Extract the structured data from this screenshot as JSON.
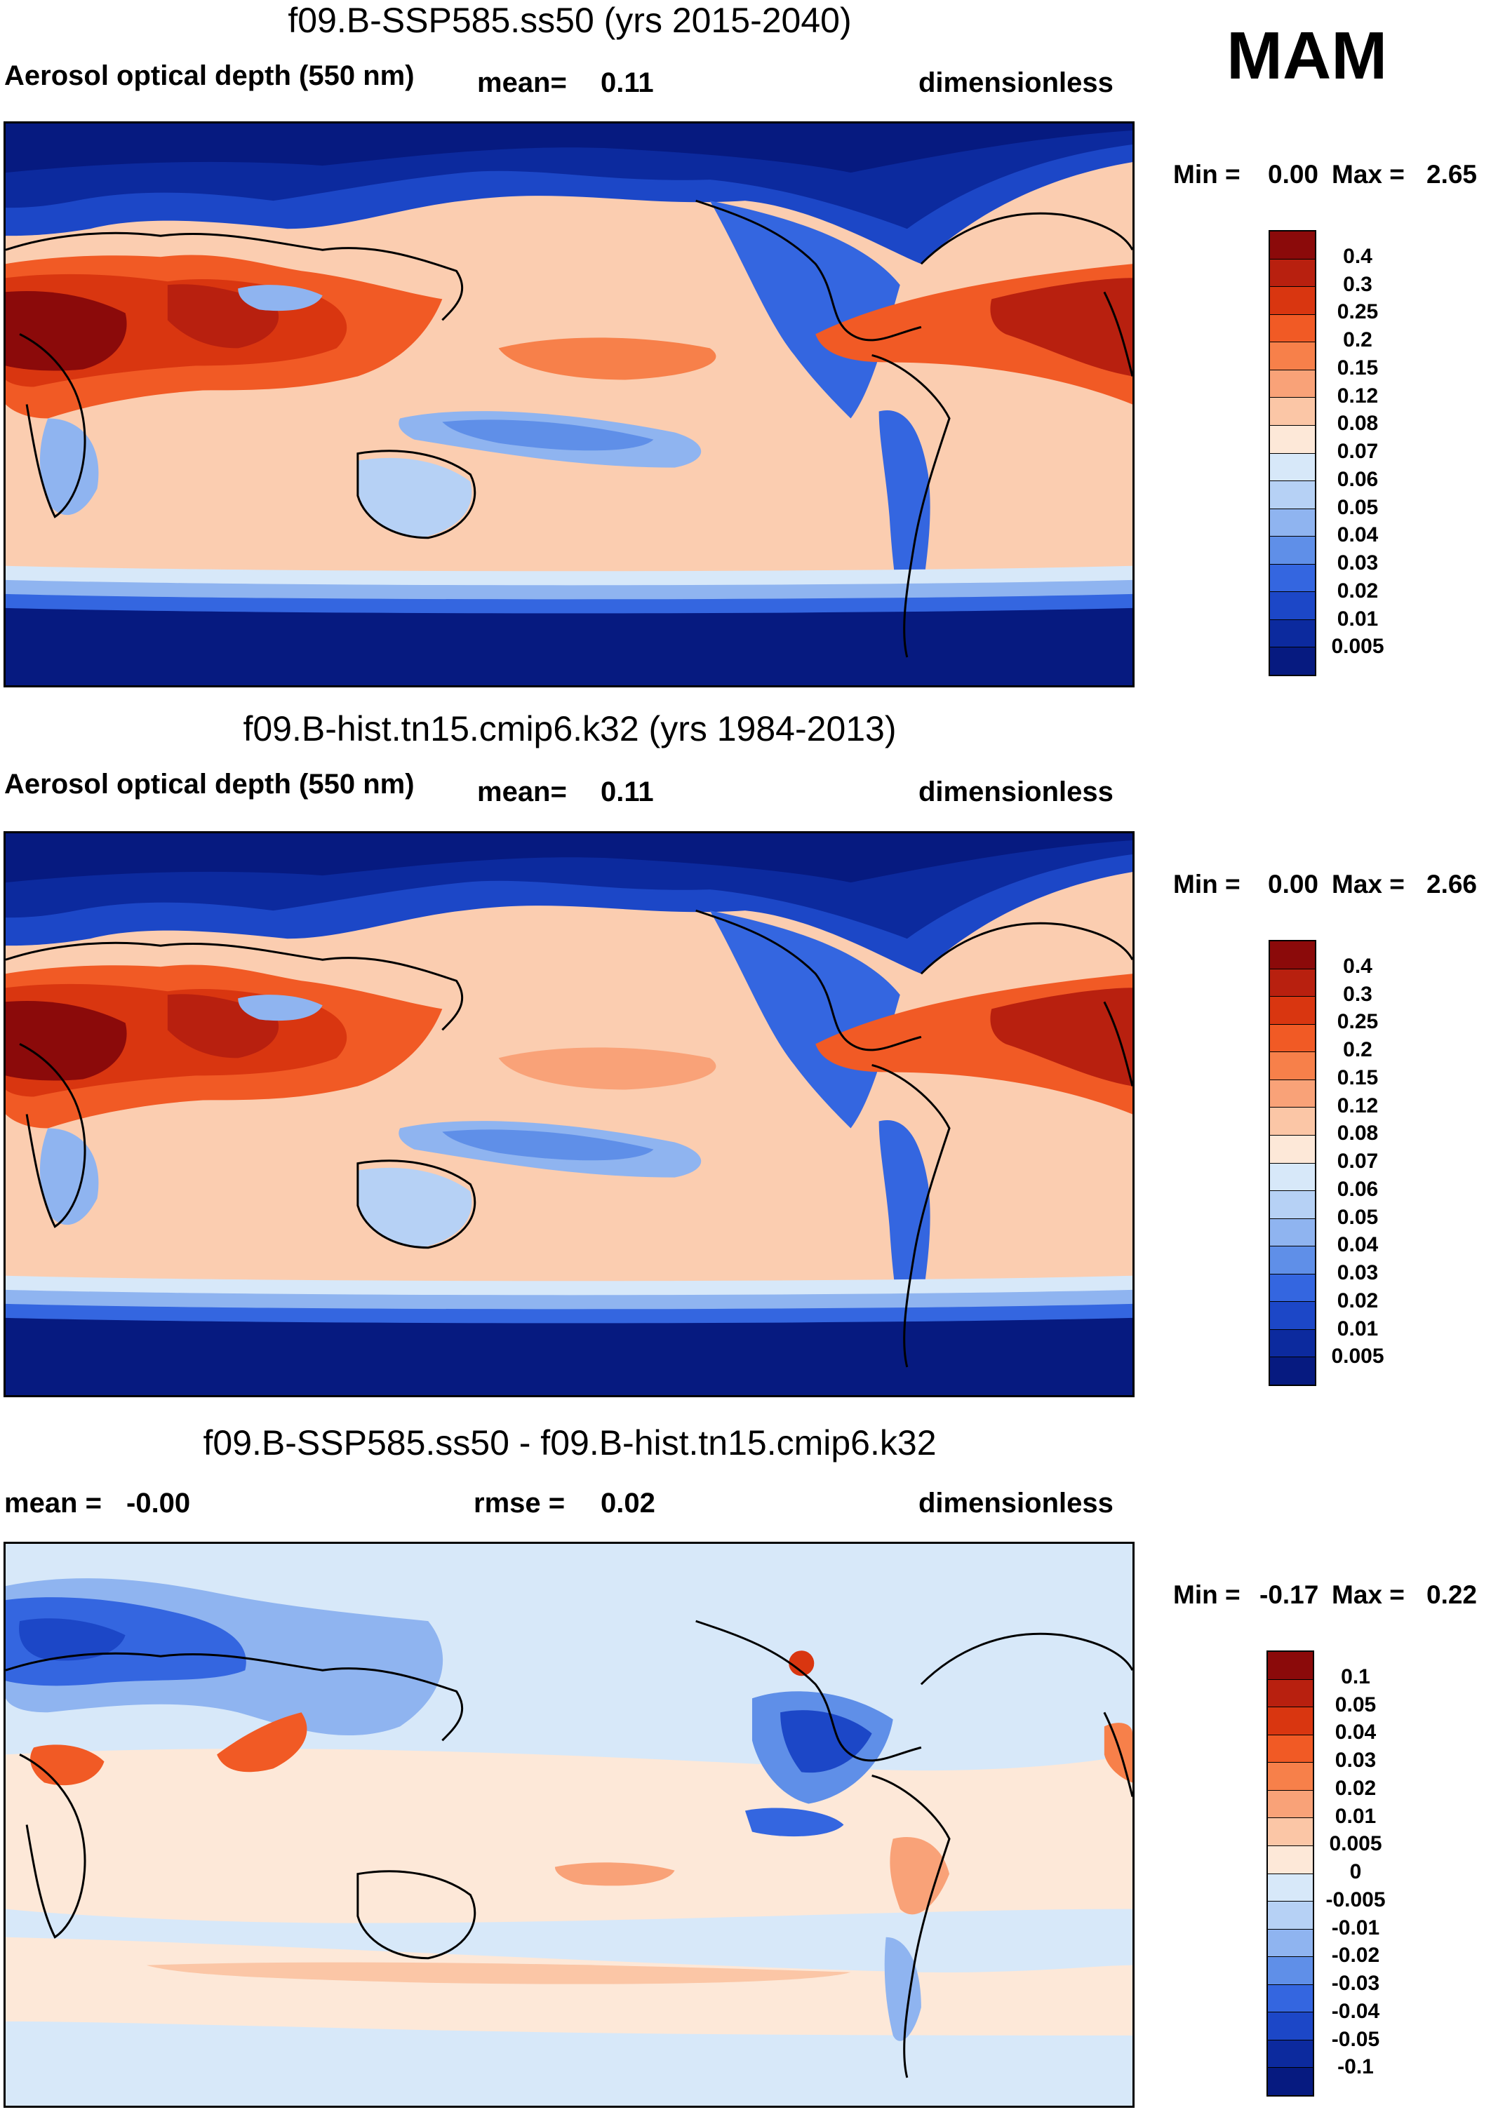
{
  "season": "MAM",
  "panels": [
    {
      "id": "ssp585",
      "title": "f09.B-SSP585.ss50 (yrs 2015-2040)",
      "left_label": "Aerosol optical depth (550 nm)",
      "mid_label": "mean=",
      "mid_value": "0.11",
      "right_label": "dimensionless",
      "min_label": "Min =",
      "min_value": "0.00",
      "max_label": "Max =",
      "max_value": "2.65",
      "legend_levels": [
        "0.4",
        "0.3",
        "0.25",
        "0.2",
        "0.15",
        "0.12",
        "0.08",
        "0.07",
        "0.06",
        "0.05",
        "0.04",
        "0.03",
        "0.02",
        "0.01",
        "0.005"
      ],
      "legend_colors": [
        "#8b0a0a",
        "#b8200f",
        "#d93610",
        "#f15a25",
        "#f7804a",
        "#f9a278",
        "#fbc6a6",
        "#fde8d8",
        "#d7e8f9",
        "#b6d1f5",
        "#8fb4f0",
        "#5f8fe8",
        "#3466e0",
        "#1c47c7",
        "#0c2a9e",
        "#061a80"
      ]
    },
    {
      "id": "hist",
      "title": "f09.B-hist.tn15.cmip6.k32 (yrs 1984-2013)",
      "left_label": "Aerosol optical depth (550 nm)",
      "mid_label": "mean=",
      "mid_value": "0.11",
      "right_label": "dimensionless",
      "min_label": "Min =",
      "min_value": "0.00",
      "max_label": "Max =",
      "max_value": "2.66",
      "legend_levels": [
        "0.4",
        "0.3",
        "0.25",
        "0.2",
        "0.15",
        "0.12",
        "0.08",
        "0.07",
        "0.06",
        "0.05",
        "0.04",
        "0.03",
        "0.02",
        "0.01",
        "0.005"
      ],
      "legend_colors": [
        "#8b0a0a",
        "#b8200f",
        "#d93610",
        "#f15a25",
        "#f7804a",
        "#f9a278",
        "#fbc6a6",
        "#fde8d8",
        "#d7e8f9",
        "#b6d1f5",
        "#8fb4f0",
        "#5f8fe8",
        "#3466e0",
        "#1c47c7",
        "#0c2a9e",
        "#061a80"
      ]
    },
    {
      "id": "diff",
      "title": "f09.B-SSP585.ss50 - f09.B-hist.tn15.cmip6.k32",
      "left_label": "mean =",
      "left_value": "-0.00",
      "mid_label": "rmse =",
      "mid_value": "0.02",
      "right_label": "dimensionless",
      "min_label": "Min =",
      "min_value": "-0.17",
      "max_label": "Max =",
      "max_value": "0.22",
      "legend_levels": [
        "0.1",
        "0.05",
        "0.04",
        "0.03",
        "0.02",
        "0.01",
        "0.005",
        "0",
        "-0.005",
        "-0.01",
        "-0.02",
        "-0.03",
        "-0.04",
        "-0.05",
        "-0.1"
      ],
      "legend_colors": [
        "#8b0a0a",
        "#b8200f",
        "#d93610",
        "#f15a25",
        "#f7804a",
        "#f9a278",
        "#fbc6a6",
        "#fde8d8",
        "#d7e8f9",
        "#b6d1f5",
        "#8fb4f0",
        "#5f8fe8",
        "#3466e0",
        "#1c47c7",
        "#0c2a9e",
        "#061a80"
      ]
    }
  ]
}
